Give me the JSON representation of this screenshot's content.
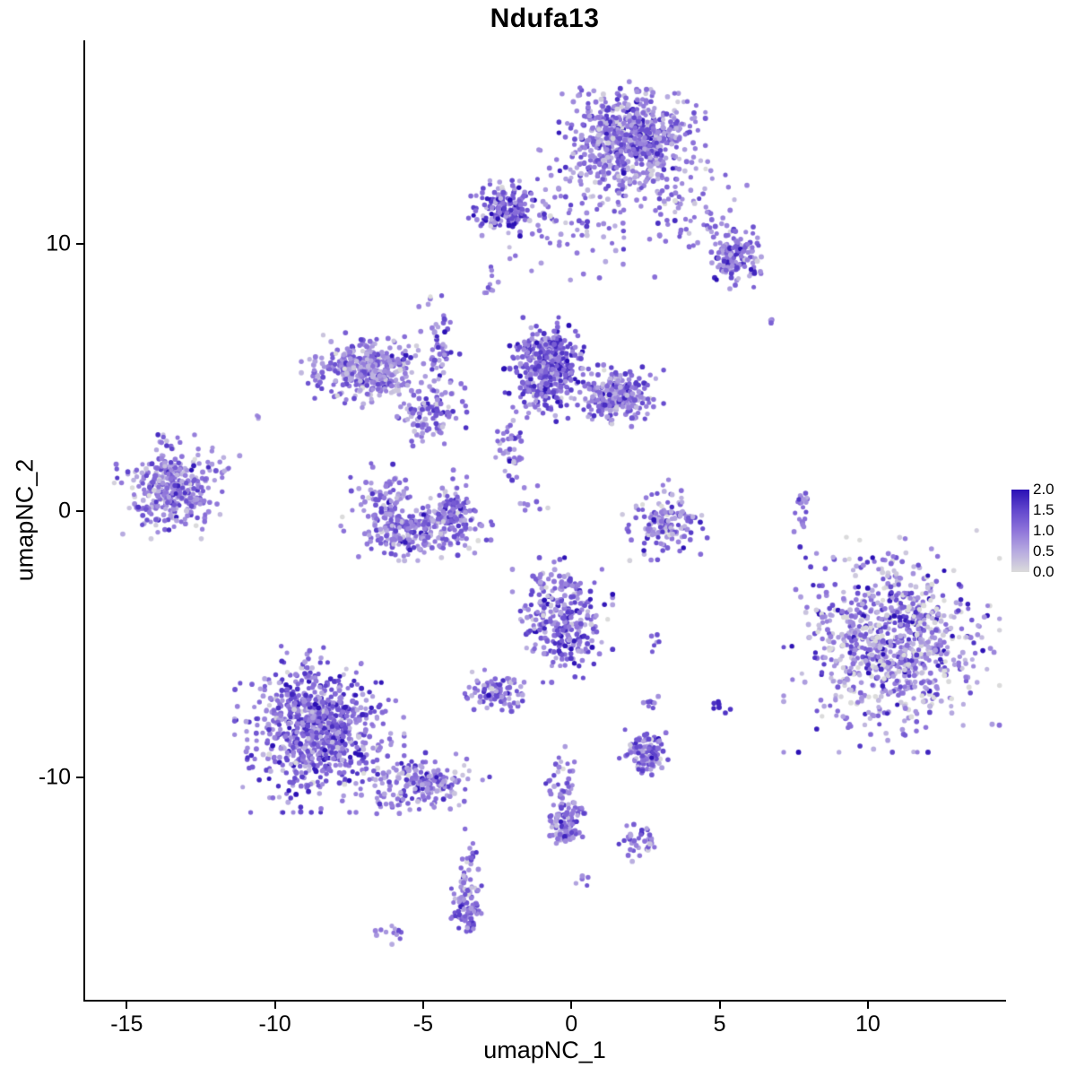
{
  "title": "Ndufa13",
  "axes": {
    "x": {
      "label": "umapNC_1",
      "ticks": [
        {
          "value": -15,
          "label": "-15"
        },
        {
          "value": -10,
          "label": "-10"
        },
        {
          "value": -5,
          "label": "-5"
        },
        {
          "value": 0,
          "label": "0"
        },
        {
          "value": 5,
          "label": "5"
        },
        {
          "value": 10,
          "label": "10"
        }
      ]
    },
    "y": {
      "label": "umapNC_2",
      "ticks": [
        {
          "value": 10,
          "label": "10"
        },
        {
          "value": 0,
          "label": "0"
        },
        {
          "value": -10,
          "label": "-10"
        }
      ]
    }
  },
  "legend": {
    "tick_labels": [
      "2.0",
      "1.5",
      "1.0",
      "0.5",
      "0.0"
    ]
  },
  "chart_data": {
    "type": "scatter",
    "title": "Ndufa13",
    "xlabel": "umapNC_1",
    "ylabel": "umapNC_2",
    "xlim": [
      -16.4,
      14.6
    ],
    "ylim": [
      -18.35,
      17.65
    ],
    "grid": false,
    "legend_position": "right",
    "color_scale": {
      "stops": [
        {
          "value": 0.0,
          "color": "#DBDBDB"
        },
        {
          "value": 0.5,
          "color": "#B7ABE0"
        },
        {
          "value": 1.0,
          "color": "#8F75DA"
        },
        {
          "value": 1.5,
          "color": "#6247CD"
        },
        {
          "value": 2.0,
          "color": "#2B10B5"
        }
      ]
    },
    "clusters": [
      {
        "x": 2.05,
        "y": 14.15,
        "sd_x": 0.95,
        "sd_y": 0.75,
        "count": 600,
        "expr_mean": 1.0,
        "expr_sd": 0.45
      },
      {
        "x": 1.5,
        "y": 12.7,
        "sd_x": 1.25,
        "sd_y": 0.5,
        "count": 150,
        "expr_mean": 0.9,
        "expr_sd": 0.45
      },
      {
        "x": 3.9,
        "y": 11.2,
        "sd_x": 0.85,
        "sd_y": 0.8,
        "count": 70,
        "expr_mean": 0.9,
        "expr_sd": 0.4
      },
      {
        "x": 5.55,
        "y": 9.5,
        "sd_x": 0.4,
        "sd_y": 0.45,
        "count": 140,
        "expr_mean": 1.1,
        "expr_sd": 0.4
      },
      {
        "x": -2.25,
        "y": 11.35,
        "sd_x": 0.45,
        "sd_y": 0.4,
        "count": 170,
        "expr_mean": 1.2,
        "expr_sd": 0.45
      },
      {
        "x": -0.2,
        "y": 11.0,
        "sd_x": 1.3,
        "sd_y": 0.55,
        "count": 55,
        "expr_mean": 0.85,
        "expr_sd": 0.4
      },
      {
        "x": -2.8,
        "y": 8.6,
        "sd_x": 0.15,
        "sd_y": 0.3,
        "count": 10,
        "expr_mean": 1.0,
        "expr_sd": 0.3
      },
      {
        "x": 6.7,
        "y": 7.2,
        "sd_x": 0.08,
        "sd_y": 0.08,
        "count": 3,
        "expr_mean": 1.0,
        "expr_sd": 0.25
      },
      {
        "x": 0.2,
        "y": 10.0,
        "sd_x": 1.3,
        "sd_y": 0.7,
        "count": 30,
        "expr_mean": 0.8,
        "expr_sd": 0.4
      },
      {
        "x": -6.9,
        "y": 5.3,
        "sd_x": 0.85,
        "sd_y": 0.55,
        "count": 380,
        "expr_mean": 0.9,
        "expr_sd": 0.4
      },
      {
        "x": -4.45,
        "y": 5.6,
        "sd_x": 0.28,
        "sd_y": 1.2,
        "count": 70,
        "expr_mean": 1.0,
        "expr_sd": 0.4
      },
      {
        "x": -0.8,
        "y": 5.3,
        "sd_x": 0.6,
        "sd_y": 0.75,
        "count": 420,
        "expr_mean": 1.25,
        "expr_sd": 0.45
      },
      {
        "x": 1.55,
        "y": 4.3,
        "sd_x": 0.6,
        "sd_y": 0.45,
        "count": 260,
        "expr_mean": 1.0,
        "expr_sd": 0.45
      },
      {
        "x": -4.8,
        "y": 3.6,
        "sd_x": 0.5,
        "sd_y": 0.45,
        "count": 90,
        "expr_mean": 1.0,
        "expr_sd": 0.4
      },
      {
        "x": -2.1,
        "y": 2.1,
        "sd_x": 0.3,
        "sd_y": 0.85,
        "count": 45,
        "expr_mean": 1.0,
        "expr_sd": 0.4
      },
      {
        "x": -6.3,
        "y": 0.4,
        "sd_x": 0.45,
        "sd_y": 0.7,
        "count": 100,
        "expr_mean": 0.95,
        "expr_sd": 0.4
      },
      {
        "x": -5.2,
        "y": -0.7,
        "sd_x": 1.0,
        "sd_y": 0.45,
        "count": 250,
        "expr_mean": 1.0,
        "expr_sd": 0.45
      },
      {
        "x": -3.95,
        "y": 0.1,
        "sd_x": 0.35,
        "sd_y": 0.6,
        "count": 80,
        "expr_mean": 1.0,
        "expr_sd": 0.4
      },
      {
        "x": -13.6,
        "y": 0.9,
        "sd_x": 0.7,
        "sd_y": 0.75,
        "count": 370,
        "expr_mean": 0.9,
        "expr_sd": 0.45
      },
      {
        "x": -11.9,
        "y": 1.9,
        "sd_x": 0.3,
        "sd_y": 0.3,
        "count": 8,
        "expr_mean": 0.7,
        "expr_sd": 0.3
      },
      {
        "x": -10.6,
        "y": 3.6,
        "sd_x": 0.12,
        "sd_y": 0.12,
        "count": 3,
        "expr_mean": 0.8,
        "expr_sd": 0.25
      },
      {
        "x": 3.15,
        "y": -0.4,
        "sd_x": 0.55,
        "sd_y": 0.6,
        "count": 150,
        "expr_mean": 0.9,
        "expr_sd": 0.45
      },
      {
        "x": 7.77,
        "y": 0.1,
        "sd_x": 0.1,
        "sd_y": 0.45,
        "count": 22,
        "expr_mean": 1.0,
        "expr_sd": 0.4
      },
      {
        "x": 10.8,
        "y": -4.9,
        "sd_x": 1.4,
        "sd_y": 1.6,
        "count": 900,
        "expr_mean": 0.8,
        "expr_sd": 0.6
      },
      {
        "x": -0.3,
        "y": -4.1,
        "sd_x": 0.65,
        "sd_y": 0.9,
        "count": 300,
        "expr_mean": 1.05,
        "expr_sd": 0.45
      },
      {
        "x": 2.9,
        "y": -4.9,
        "sd_x": 0.15,
        "sd_y": 0.15,
        "count": 6,
        "expr_mean": 1.1,
        "expr_sd": 0.3
      },
      {
        "x": -2.5,
        "y": -6.8,
        "sd_x": 0.45,
        "sd_y": 0.35,
        "count": 85,
        "expr_mean": 1.1,
        "expr_sd": 0.4
      },
      {
        "x": 2.7,
        "y": -7.2,
        "sd_x": 0.15,
        "sd_y": 0.15,
        "count": 8,
        "expr_mean": 1.0,
        "expr_sd": 0.3
      },
      {
        "x": 5.0,
        "y": -7.4,
        "sd_x": 0.15,
        "sd_y": 0.12,
        "count": 7,
        "expr_mean": 1.7,
        "expr_sd": 0.2
      },
      {
        "x": -8.5,
        "y": -8.2,
        "sd_x": 1.1,
        "sd_y": 1.2,
        "count": 850,
        "expr_mean": 1.1,
        "expr_sd": 0.45
      },
      {
        "x": -5.1,
        "y": -10.2,
        "sd_x": 0.9,
        "sd_y": 0.45,
        "count": 200,
        "expr_mean": 0.95,
        "expr_sd": 0.45
      },
      {
        "x": 2.45,
        "y": -9.1,
        "sd_x": 0.4,
        "sd_y": 0.35,
        "count": 120,
        "expr_mean": 1.1,
        "expr_sd": 0.4
      },
      {
        "x": -0.3,
        "y": -10.4,
        "sd_x": 0.25,
        "sd_y": 0.8,
        "count": 50,
        "expr_mean": 1.0,
        "expr_sd": 0.4
      },
      {
        "x": -0.2,
        "y": -11.85,
        "sd_x": 0.3,
        "sd_y": 0.5,
        "count": 90,
        "expr_mean": 1.05,
        "expr_sd": 0.4
      },
      {
        "x": 2.3,
        "y": -12.55,
        "sd_x": 0.3,
        "sd_y": 0.3,
        "count": 35,
        "expr_mean": 1.1,
        "expr_sd": 0.4
      },
      {
        "x": -3.45,
        "y": -13.5,
        "sd_x": 0.18,
        "sd_y": 0.6,
        "count": 35,
        "expr_mean": 1.0,
        "expr_sd": 0.4
      },
      {
        "x": -3.5,
        "y": -15.0,
        "sd_x": 0.25,
        "sd_y": 0.4,
        "count": 70,
        "expr_mean": 1.05,
        "expr_sd": 0.4
      },
      {
        "x": 0.4,
        "y": -13.9,
        "sd_x": 0.12,
        "sd_y": 0.12,
        "count": 5,
        "expr_mean": 0.9,
        "expr_sd": 0.3
      },
      {
        "x": -6.1,
        "y": -15.8,
        "sd_x": 0.3,
        "sd_y": 0.18,
        "count": 12,
        "expr_mean": 0.9,
        "expr_sd": 0.35
      },
      {
        "x": -1.4,
        "y": 0.3,
        "sd_x": 0.3,
        "sd_y": 0.4,
        "count": 8,
        "expr_mean": 0.9,
        "expr_sd": 0.35
      }
    ]
  }
}
